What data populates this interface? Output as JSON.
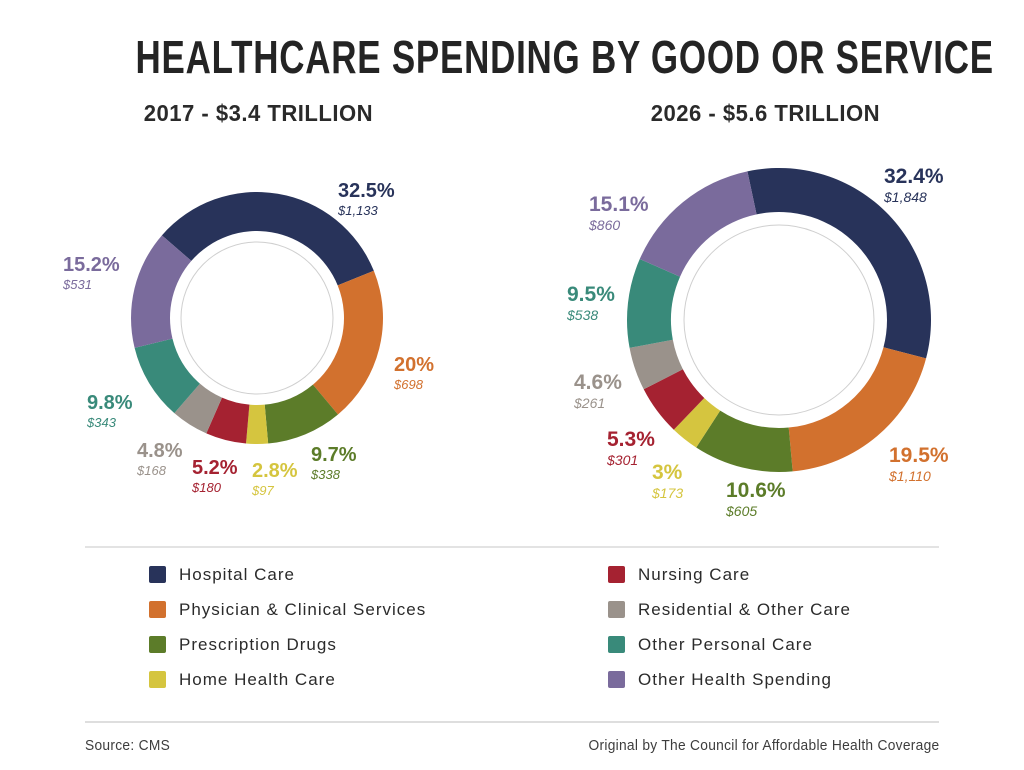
{
  "title": "HEALTHCARE SPENDING BY GOOD OR SERVICE",
  "footer": {
    "source": "Source: CMS",
    "credit": "Original by The Council for Affordable Health Coverage"
  },
  "colors": {
    "hospital_care": "#28335a",
    "physician_clinical": "#d2712e",
    "prescription_drugs": "#5c7c29",
    "home_health": "#d5c53f",
    "nursing_care": "#a52231",
    "residential_other": "#9a928b",
    "other_personal": "#398a7a",
    "other_health": "#7a6b9c",
    "inner_ring": "#cfcfcf"
  },
  "legend": {
    "columns": [
      {
        "items": [
          {
            "label": "Hospital Care",
            "color": "#28335a"
          },
          {
            "label": "Physician & Clinical Services",
            "color": "#d2712e"
          },
          {
            "label": "Prescription Drugs",
            "color": "#5c7c29"
          },
          {
            "label": "Home Health Care",
            "color": "#d5c53f"
          }
        ]
      },
      {
        "items": [
          {
            "label": "Nursing Care",
            "color": "#a52231"
          },
          {
            "label": "Residential & Other Care",
            "color": "#9a928b"
          },
          {
            "label": "Other Personal Care",
            "color": "#398a7a"
          },
          {
            "label": "Other Health Spending",
            "color": "#7a6b9c"
          }
        ]
      }
    ]
  },
  "chart_data": [
    {
      "type": "pie",
      "donut": true,
      "title": "2017 - $3.4 TRILLION",
      "start_angle_deg": -49,
      "legend_position": "bottom",
      "slices": [
        {
          "label": "Hospital Care",
          "pct": 32.5,
          "pct_text": "32.5%",
          "amount_text": "$1,133",
          "color": "#28335a"
        },
        {
          "label": "Physician & Clinical Services",
          "pct": 20,
          "pct_text": "20%",
          "amount_text": "$698",
          "color": "#d2712e"
        },
        {
          "label": "Prescription Drugs",
          "pct": 9.7,
          "pct_text": "9.7%",
          "amount_text": "$338",
          "color": "#5c7c29"
        },
        {
          "label": "Home Health Care",
          "pct": 2.8,
          "pct_text": "2.8%",
          "amount_text": "$97",
          "color": "#d5c53f"
        },
        {
          "label": "Nursing Care",
          "pct": 5.2,
          "pct_text": "5.2%",
          "amount_text": "$180",
          "color": "#a52231"
        },
        {
          "label": "Residential & Other Care",
          "pct": 4.8,
          "pct_text": "4.8%",
          "amount_text": "$168",
          "color": "#9a928b"
        },
        {
          "label": "Other Personal Care",
          "pct": 9.8,
          "pct_text": "9.8%",
          "amount_text": "$343",
          "color": "#398a7a"
        },
        {
          "label": "Other Health Spending",
          "pct": 15.2,
          "pct_text": "15.2%",
          "amount_text": "$531",
          "color": "#7a6b9c"
        }
      ]
    },
    {
      "type": "pie",
      "donut": true,
      "title": "2026 - $5.6 TRILLION",
      "start_angle_deg": -12,
      "legend_position": "bottom",
      "slices": [
        {
          "label": "Hospital Care",
          "pct": 32.4,
          "pct_text": "32.4%",
          "amount_text": "$1,848",
          "color": "#28335a"
        },
        {
          "label": "Physician & Clinical Services",
          "pct": 19.5,
          "pct_text": "19.5%",
          "amount_text": "$1,110",
          "color": "#d2712e"
        },
        {
          "label": "Prescription Drugs",
          "pct": 10.6,
          "pct_text": "10.6%",
          "amount_text": "$605",
          "color": "#5c7c29"
        },
        {
          "label": "Home Health Care",
          "pct": 3,
          "pct_text": "3%",
          "amount_text": "$173",
          "color": "#d5c53f"
        },
        {
          "label": "Nursing Care",
          "pct": 5.3,
          "pct_text": "5.3%",
          "amount_text": "$301",
          "color": "#a52231"
        },
        {
          "label": "Residential & Other Care",
          "pct": 4.6,
          "pct_text": "4.6%",
          "amount_text": "$261",
          "color": "#9a928b"
        },
        {
          "label": "Other Personal Care",
          "pct": 9.5,
          "pct_text": "9.5%",
          "amount_text": "$538",
          "color": "#398a7a"
        },
        {
          "label": "Other Health Spending",
          "pct": 15.1,
          "pct_text": "15.1%",
          "amount_text": "$860",
          "color": "#7a6b9c"
        }
      ]
    }
  ]
}
